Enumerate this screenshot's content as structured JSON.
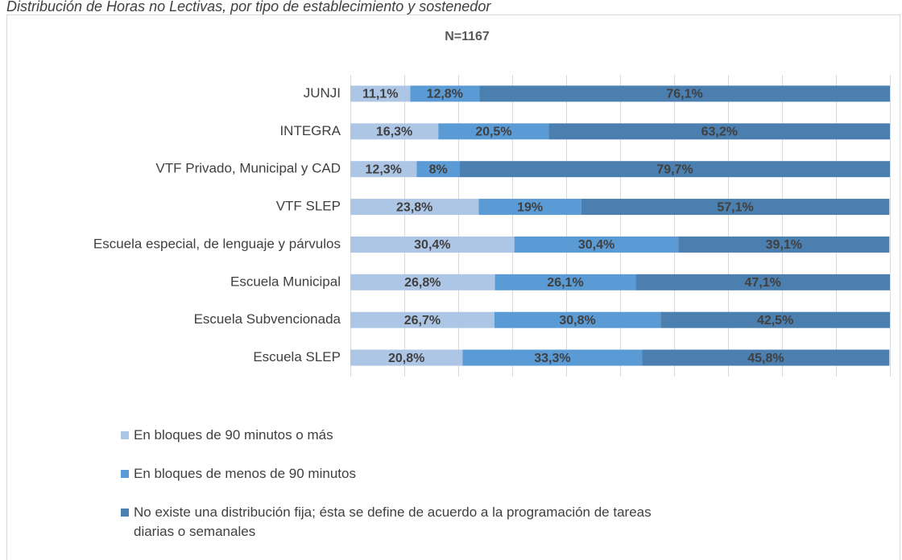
{
  "chart_data": {
    "type": "stacked-barh",
    "title": "Distribución de Horas no Lectivas, por tipo de establecimiento y sostenedor",
    "subtitle": "N=1167",
    "categories": [
      "JUNJI",
      "INTEGRA",
      "VTF Privado, Municipal y CAD",
      "VTF SLEP",
      "Escuela especial, de lenguaje y párvulos",
      "Escuela Municipal",
      "Escuela Subvencionada",
      "Escuela SLEP"
    ],
    "series": [
      {
        "name": "En bloques de 90 minutos o más",
        "color": "#adc6e6",
        "values": [
          11.1,
          16.3,
          12.3,
          23.8,
          30.4,
          26.8,
          26.7,
          20.8
        ],
        "value_labels": [
          "11,1%",
          "16,3%",
          "12,3%",
          "23,8%",
          "30,4%",
          "26,8%",
          "26,7%",
          "20,8%"
        ]
      },
      {
        "name": "En bloques de menos de 90 minutos",
        "color": "#5b9bd5",
        "values": [
          12.8,
          20.5,
          8,
          19,
          30.4,
          26.1,
          30.8,
          33.3
        ],
        "value_labels": [
          "12,8%",
          "20,5%",
          "8%",
          "19%",
          "30,4%",
          "26,1%",
          "30,8%",
          "33,3%"
        ]
      },
      {
        "name": "No existe una distribución fija; ésta se define de acuerdo a la programación de tareas diarias o semanales",
        "color": "#4b7fb0",
        "values": [
          76.1,
          63.2,
          79.7,
          57.1,
          39.1,
          47.1,
          42.5,
          45.8
        ],
        "value_labels": [
          "76,1%",
          "63,2%",
          "79,7%",
          "57,1%",
          "39,1%",
          "47,1%",
          "42,5%",
          "45,8%"
        ]
      }
    ],
    "xlim": [
      0,
      100
    ],
    "xticks": [
      0,
      10,
      20,
      30,
      40,
      50,
      60,
      70,
      80,
      90,
      100
    ],
    "grid": true
  }
}
